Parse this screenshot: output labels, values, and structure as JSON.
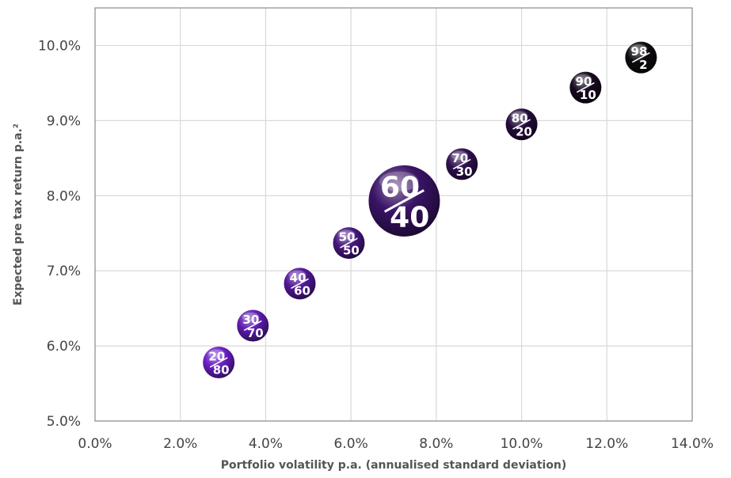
{
  "chart_data": {
    "type": "scatter",
    "xlabel": "Portfolio volatility p.a. (annualised standard deviation)",
    "ylabel": "Expected pre tax return p.a.²",
    "xlim": [
      0,
      14
    ],
    "ylim": [
      5,
      10.5
    ],
    "xticks": [
      "0.0%",
      "2.0%",
      "4.0%",
      "6.0%",
      "8.0%",
      "10.0%",
      "12.0%",
      "14.0%"
    ],
    "yticks": [
      "5.0%",
      "6.0%",
      "7.0%",
      "8.0%",
      "9.0%",
      "10.0%"
    ],
    "grid": true,
    "points": [
      {
        "x": 2.9,
        "y": 5.78,
        "top": "20",
        "bottom": "80",
        "color": "#6a1fc4",
        "highlight": false
      },
      {
        "x": 3.7,
        "y": 6.27,
        "top": "30",
        "bottom": "70",
        "color": "#5e1cb0",
        "highlight": false
      },
      {
        "x": 4.8,
        "y": 6.83,
        "top": "40",
        "bottom": "60",
        "color": "#521896",
        "highlight": false
      },
      {
        "x": 5.95,
        "y": 7.37,
        "top": "50",
        "bottom": "50",
        "color": "#47167e",
        "highlight": false
      },
      {
        "x": 7.25,
        "y": 7.93,
        "top": "60",
        "bottom": "40",
        "color": "#3a1366",
        "highlight": true
      },
      {
        "x": 8.6,
        "y": 8.42,
        "top": "70",
        "bottom": "30",
        "color": "#2e1050",
        "highlight": false
      },
      {
        "x": 10.0,
        "y": 8.95,
        "top": "80",
        "bottom": "20",
        "color": "#230c3c",
        "highlight": false
      },
      {
        "x": 11.5,
        "y": 9.44,
        "top": "90",
        "bottom": "10",
        "color": "#17091f",
        "highlight": false
      },
      {
        "x": 12.8,
        "y": 9.84,
        "top": "98",
        "bottom": "2",
        "color": "#0e0b10",
        "highlight": false
      }
    ]
  }
}
